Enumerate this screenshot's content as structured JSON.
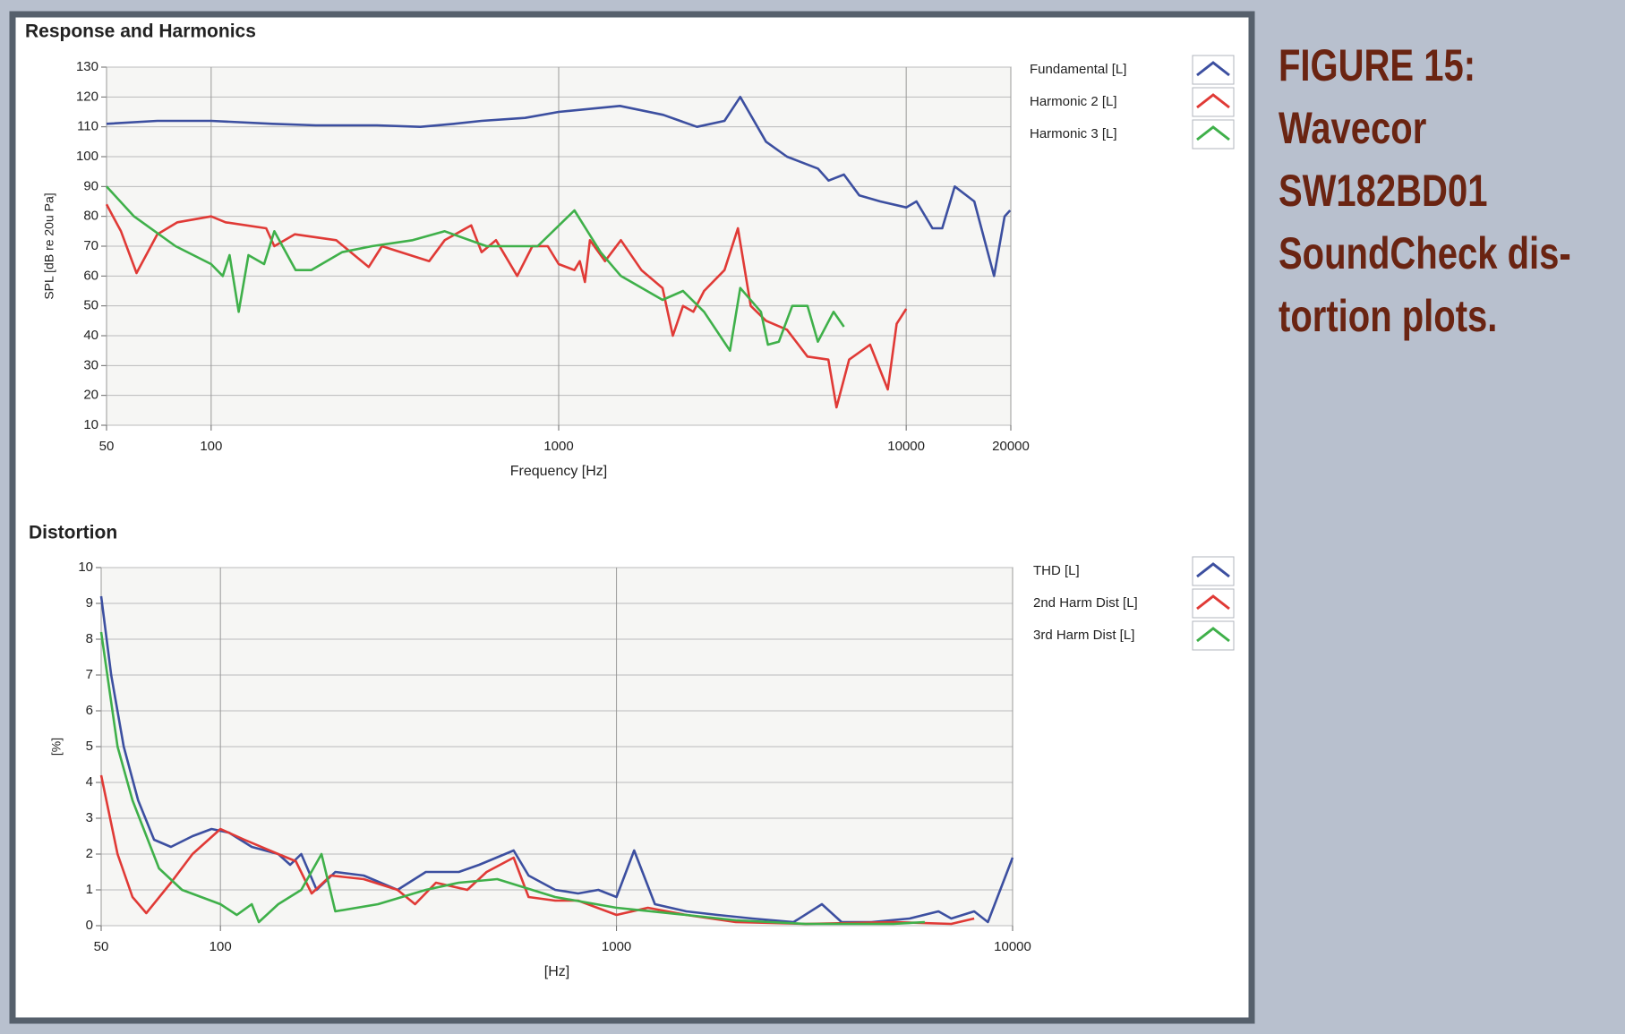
{
  "chart_data": [
    {
      "type": "line",
      "title": "Response and Harmonics",
      "xlabel": "Frequency [Hz]",
      "ylabel": "SPL [dB re 20u Pa]",
      "xscale": "log",
      "xlim": [
        50,
        20000
      ],
      "xticks": [
        50,
        100,
        1000,
        10000,
        20000
      ],
      "ylim": [
        10,
        130
      ],
      "yticks": [
        10,
        20,
        30,
        40,
        50,
        60,
        70,
        80,
        90,
        100,
        110,
        120,
        130
      ],
      "grid": true,
      "legend": "right",
      "series": [
        {
          "name": "Fundamental [L]",
          "color": "#3c4fa0",
          "x": [
            50,
            70,
            100,
            150,
            200,
            300,
            400,
            500,
            600,
            800,
            1000,
            1500,
            2000,
            2500,
            3000,
            3330,
            3950,
            4540,
            5570,
            5980,
            6620,
            7330,
            8420,
            10000,
            10700,
            11900,
            12700,
            13800,
            15700,
            17900,
            19200,
            19900
          ],
          "values": [
            111,
            112,
            112,
            111,
            110.5,
            110.5,
            110,
            111,
            112,
            113,
            115,
            117,
            114,
            110,
            112,
            120,
            105,
            100,
            96,
            92,
            94,
            87,
            85,
            83,
            85,
            76,
            76,
            90,
            85,
            60,
            80,
            82
          ]
        },
        {
          "name": "Harmonic 2 [L]",
          "color": "#e03a36",
          "x": [
            50,
            55,
            61,
            70,
            80,
            100,
            110,
            144,
            152,
            174,
            229,
            284,
            310,
            424,
            470,
            560,
            600,
            660,
            760,
            840,
            930,
            1000,
            1110,
            1150,
            1190,
            1230,
            1360,
            1510,
            1730,
            1990,
            2130,
            2280,
            2440,
            2620,
            3000,
            3280,
            3570,
            3950,
            4540,
            5200,
            5970,
            6300,
            6850,
            7870,
            8850,
            9390,
            10000
          ],
          "values": [
            84,
            75,
            61,
            74,
            78,
            80,
            78,
            76,
            70,
            74,
            72,
            63,
            70,
            65,
            72,
            77,
            68,
            72,
            60,
            70,
            70,
            64,
            62,
            65,
            58,
            72,
            65,
            72,
            62,
            56,
            40,
            50,
            48,
            55,
            62,
            76,
            50,
            45,
            42,
            33,
            32,
            16,
            32,
            37,
            22,
            44,
            49
          ]
        },
        {
          "name": "Harmonic 3 [L]",
          "color": "#3fb04a",
          "x": [
            50,
            60,
            79,
            100,
            108,
            113,
            120,
            128,
            142,
            152,
            175,
            194,
            238,
            290,
            380,
            470,
            620,
            760,
            870,
            1110,
            1320,
            1510,
            1990,
            2280,
            2620,
            3110,
            3330,
            3820,
            4000,
            4300,
            4700,
            5200,
            5570,
            6180,
            6620
          ],
          "values": [
            90,
            80,
            70,
            64,
            60,
            67,
            48,
            67,
            64,
            75,
            62,
            62,
            68,
            70,
            72,
            75,
            70,
            70,
            70,
            82,
            68,
            60,
            52,
            55,
            48,
            35,
            56,
            48,
            37,
            38,
            50,
            50,
            38,
            48,
            43
          ]
        }
      ]
    },
    {
      "type": "line",
      "title": "Distortion",
      "xlabel": "[Hz]",
      "ylabel": "[%]",
      "xscale": "log",
      "xlim": [
        50,
        10000
      ],
      "xticks": [
        50,
        100,
        1000,
        10000
      ],
      "ylim": [
        0,
        10
      ],
      "yticks": [
        0,
        1,
        2,
        3,
        4,
        5,
        6,
        7,
        8,
        9,
        10
      ],
      "grid": true,
      "legend": "right",
      "series": [
        {
          "name": "THD [L]",
          "color": "#3c4fa0",
          "x": [
            50,
            53,
            57,
            62,
            68,
            75,
            85,
            95,
            105,
            120,
            140,
            150,
            160,
            175,
            195,
            230,
            280,
            330,
            400,
            450,
            550,
            600,
            700,
            800,
            900,
            1000,
            1108,
            1250,
            1500,
            1800,
            2200,
            2800,
            3300,
            3700,
            4400,
            5500,
            6500,
            7000,
            8000,
            8660,
            10000
          ],
          "values": [
            9.2,
            7,
            5,
            3.5,
            2.4,
            2.2,
            2.5,
            2.7,
            2.6,
            2.2,
            2.0,
            1.7,
            2.0,
            1.0,
            1.5,
            1.4,
            1.0,
            1.5,
            1.5,
            1.7,
            2.1,
            1.4,
            1.0,
            0.9,
            1.0,
            0.8,
            2.1,
            0.6,
            0.4,
            0.3,
            0.2,
            0.1,
            0.6,
            0.1,
            0.1,
            0.2,
            0.4,
            0.2,
            0.4,
            0.1,
            1.9
          ]
        },
        {
          "name": "2nd Harm Dist [L]",
          "color": "#e03a36",
          "x": [
            50,
            55,
            60,
            65,
            75,
            85,
            100,
            115,
            140,
            155,
            170,
            190,
            230,
            280,
            310,
            350,
            420,
            470,
            550,
            600,
            700,
            800,
            1000,
            1200,
            1500,
            2000,
            3000,
            5000,
            7000,
            8000
          ],
          "values": [
            4.2,
            2,
            0.8,
            0.35,
            1.2,
            2,
            2.7,
            2.4,
            2,
            1.8,
            0.9,
            1.4,
            1.3,
            1.0,
            0.6,
            1.2,
            1.0,
            1.5,
            1.9,
            0.8,
            0.7,
            0.7,
            0.3,
            0.5,
            0.3,
            0.1,
            0.05,
            0.1,
            0.05,
            0.2
          ]
        },
        {
          "name": "3rd Harm Dist [L]",
          "color": "#3fb04a",
          "x": [
            50,
            55,
            60,
            70,
            80,
            100,
            110,
            120,
            125,
            140,
            160,
            180,
            195,
            250,
            330,
            400,
            500,
            700,
            1000,
            1500,
            2000,
            3000,
            4000,
            5000,
            6000
          ],
          "values": [
            8.2,
            5,
            3.5,
            1.6,
            1.0,
            0.6,
            0.3,
            0.6,
            0.1,
            0.6,
            1.0,
            2.0,
            0.4,
            0.6,
            1.0,
            1.2,
            1.3,
            0.8,
            0.5,
            0.3,
            0.15,
            0.05,
            0.05,
            0.05,
            0.1
          ]
        }
      ]
    }
  ],
  "caption": [
    "FIGURE 15:",
    "Wavecor",
    "SW182BD01",
    "SoundCheck dis-",
    "tortion plots."
  ]
}
